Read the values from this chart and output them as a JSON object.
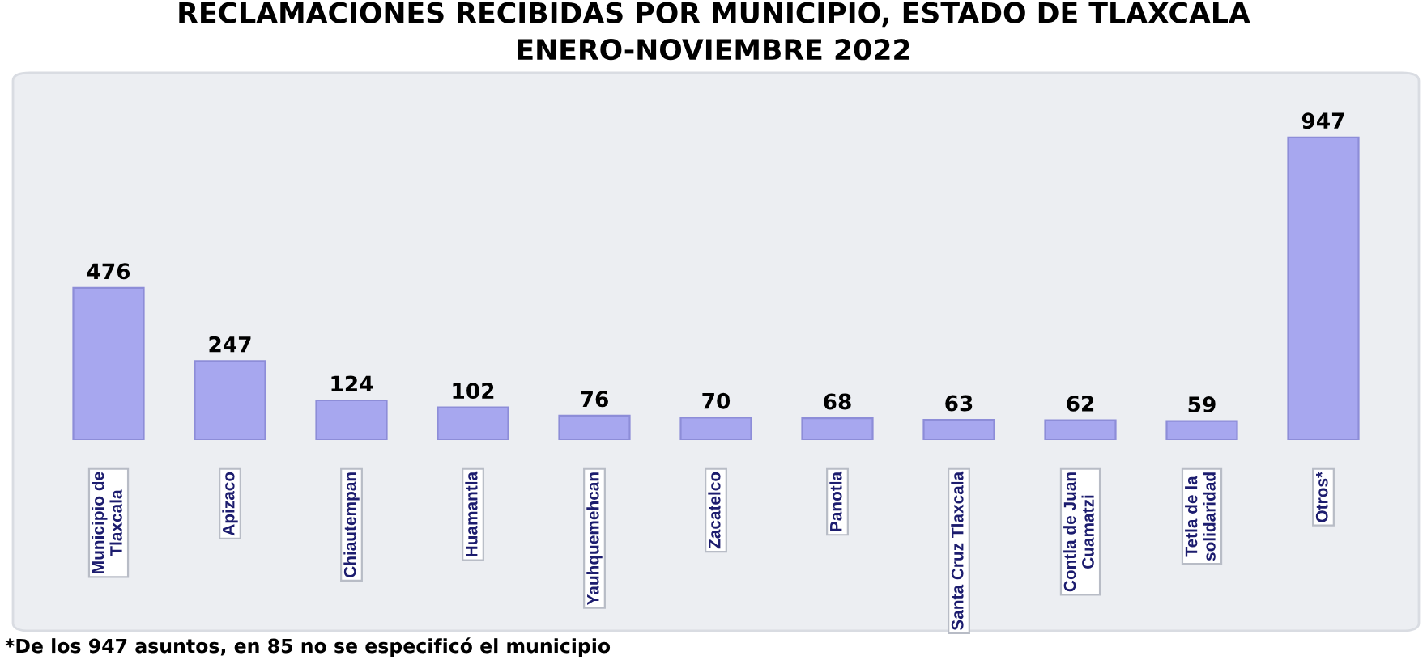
{
  "chart_data": {
    "type": "bar",
    "title": "RECLAMACIONES RECIBIDAS POR MUNICIPIO, ESTADO DE TLAXCALA\nENERO-NOVIEMBRE 2022",
    "categories": [
      "Municipio de\nTlaxcala",
      "Apizaco",
      "Chiautempan",
      "Huamantla",
      "Yauhquemehcan",
      "Zacatelco",
      "Panotla",
      "Santa Cruz Tlaxcala",
      "Contla de Juan\nCuamatzi",
      "Tetla de la\nsolidaridad",
      "Otros*"
    ],
    "values": [
      476,
      247,
      124,
      102,
      76,
      70,
      68,
      63,
      62,
      59,
      947
    ],
    "color": "#a7a7ef",
    "data_labels": true,
    "tick_labels": "x",
    "grid": false,
    "annotations": [
      "*De los 947 asuntos, en 85 no se especificó el municipio"
    ]
  }
}
